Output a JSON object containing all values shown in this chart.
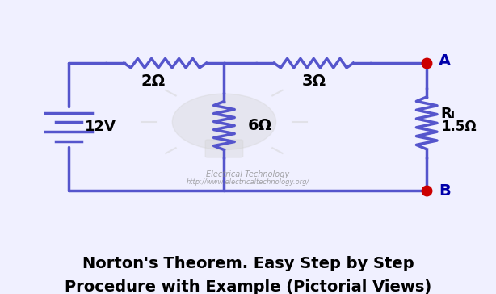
{
  "background_color": "#f0f0ff",
  "circuit_color": "#5555cc",
  "title_line1": "Norton's Theorem. Easy Step by Step",
  "title_line2": "Procedure with Example (Pictorial Views)",
  "title_fontsize": 14,
  "title_fontweight": "bold",
  "watermark1": "Electrical Technology",
  "watermark2": "http://www.electricaltechnology.org/",
  "node_A_label": "A",
  "node_B_label": "B",
  "node_color": "#cc0000",
  "label_color_AB": "#0000aa",
  "R1_label": "2Ω",
  "R2_label": "3Ω",
  "R3_label": "6Ω",
  "RL_label": "Rₗ",
  "RL_value": "1.5Ω",
  "V_label": "12V",
  "circuit_linewidth": 2.5
}
